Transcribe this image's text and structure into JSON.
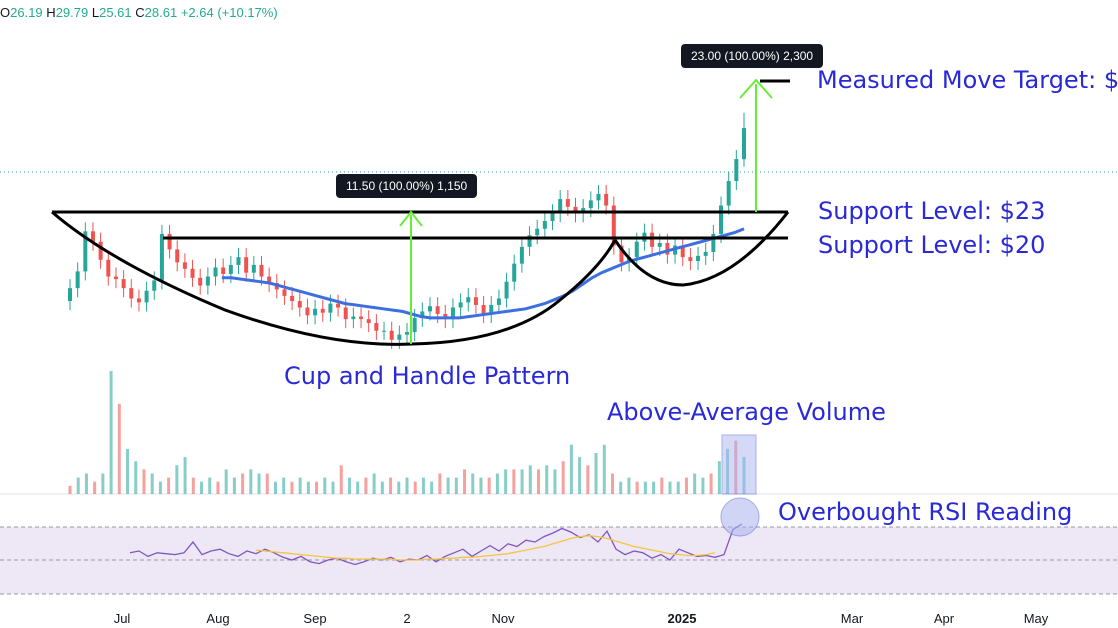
{
  "header": {
    "open_label": "O",
    "open": "26.19",
    "high_label": "H",
    "high": "29.79",
    "low_label": "L",
    "low": "25.61",
    "close_label": "C",
    "close": "28.61",
    "change": "+2.64 (+10.17%)"
  },
  "colors": {
    "up": "#26a69a",
    "down": "#ef5350",
    "ma": "#3d6fe0",
    "pattern": "#000000",
    "arrow": "#66ee33",
    "annotation": "#2929d6",
    "rsi": "#7e57c2",
    "rsi_ma": "#f5c542",
    "rsi_band": "#ede7f6",
    "volume_box": "#aab4f0"
  },
  "annotations": {
    "cup_handle": "Cup and Handle Pattern",
    "volume": "Above-Average Volume",
    "rsi": "Overbought RSI Reading",
    "support_23": "Support Level: $23",
    "support_20": "Support Level: $20",
    "target": "Measured Move Target: $"
  },
  "measure_tags": {
    "cup_depth": "11.50 (100.00%) 1,150",
    "target_move": "23.00 (100.00%) 2,300"
  },
  "chart_data": {
    "type": "candlestick",
    "x_axis_labels": [
      "Jul",
      "Aug",
      "Sep",
      "2",
      "Nov",
      "2025",
      "Mar",
      "Apr",
      "May"
    ],
    "support_levels": [
      23,
      20
    ],
    "cup_depth": 11.5,
    "measured_move": 23,
    "last_bar": {
      "open": 26.19,
      "high": 29.79,
      "low": 25.61,
      "close": 28.61,
      "change": 2.64,
      "change_pct": 10.17
    },
    "series": [
      {
        "name": "price",
        "close": [
          16.2,
          17.5,
          20.6,
          19.8,
          18.4,
          17.1,
          16.9,
          16.2,
          15.4,
          15.1,
          16.0,
          16.8,
          20.4,
          19.2,
          18.2,
          17.7,
          17.0,
          16.4,
          17.1,
          17.8,
          17.3,
          18.0,
          18.6,
          17.4,
          18.0,
          17.1,
          16.6,
          16.1,
          15.6,
          15.2,
          14.7,
          14.1,
          14.6,
          14.3,
          15.0,
          14.7,
          13.8,
          14.0,
          13.8,
          13.5,
          12.9,
          12.9,
          12.2,
          12.6,
          12.8,
          13.9,
          14.4,
          14.8,
          14.2,
          13.8,
          14.7,
          15.1,
          15.5,
          14.9,
          14.2,
          14.9,
          15.4,
          16.7,
          18.1,
          19.4,
          20.3,
          20.8,
          21.4,
          22.0,
          23.1,
          22.5,
          22.0,
          22.4,
          23.0,
          23.5,
          22.6,
          19.5,
          18.2,
          18.6,
          19.8,
          20.5,
          19.4,
          19.7,
          18.8,
          19.5,
          18.6,
          18.3,
          18.7,
          19.0,
          20.4,
          22.6,
          24.5,
          26.2,
          28.6
        ]
      },
      {
        "name": "moving average",
        "values": [
          null,
          null,
          null,
          null,
          null,
          null,
          null,
          null,
          null,
          null,
          null,
          null,
          null,
          null,
          null,
          null,
          17.0,
          17.0,
          16.9,
          16.8,
          16.7,
          16.6,
          16.4,
          16.2,
          16.0,
          15.8,
          15.6,
          15.4,
          15.2,
          15.0,
          14.9,
          14.8,
          14.7,
          14.6,
          14.5,
          14.4,
          14.2,
          14.0,
          13.9,
          13.9,
          13.9,
          13.9,
          14.0,
          14.1,
          14.2,
          14.3,
          14.4,
          14.5,
          14.6,
          14.8,
          15.0,
          15.3,
          15.6,
          16.0,
          16.5,
          17.0,
          17.4,
          17.7,
          18.0,
          18.3,
          18.5,
          18.7,
          18.9,
          19.1,
          19.3,
          19.5,
          19.7,
          19.9,
          20.1,
          20.3,
          20.5,
          20.8
        ]
      },
      {
        "name": "volume",
        "values": [
          2,
          4,
          5,
          3,
          5,
          30,
          22,
          11,
          8,
          6,
          5,
          3,
          4,
          7,
          9,
          4,
          3,
          4,
          3,
          6,
          4,
          5,
          6,
          5,
          5,
          3,
          4,
          3,
          4,
          3,
          3,
          4,
          3,
          7,
          4,
          3,
          4,
          5,
          3,
          4,
          3,
          4,
          3,
          4,
          3,
          5,
          4,
          4,
          6,
          5,
          4,
          4,
          5,
          6,
          6,
          6,
          7,
          6,
          7,
          6,
          8,
          12,
          9,
          7,
          10,
          12,
          5,
          3,
          4,
          3,
          3,
          3,
          4,
          3,
          3,
          4,
          5,
          4,
          5,
          8,
          11,
          13,
          9
        ]
      },
      {
        "name": "RSI",
        "values": [
          48,
          50,
          44,
          48,
          47,
          46,
          48,
          60,
          46,
          50,
          52,
          47,
          44,
          50,
          47,
          52,
          48,
          43,
          40,
          44,
          38,
          36,
          40,
          42,
          38,
          35,
          38,
          42,
          40,
          43,
          38,
          41,
          40,
          45,
          38,
          44,
          48,
          52,
          44,
          50,
          56,
          50,
          58,
          55,
          62,
          60,
          66,
          70,
          75,
          71,
          65,
          68,
          60,
          72,
          52,
          46,
          50,
          48,
          42,
          46,
          40,
          52,
          48,
          44,
          45,
          43,
          46,
          74,
          80
        ]
      },
      {
        "name": "RSI MA",
        "values": [
          null,
          null,
          null,
          null,
          null,
          null,
          null,
          null,
          51,
          50,
          49,
          48,
          47,
          46,
          45,
          44,
          43,
          42,
          42,
          41,
          41,
          41,
          41,
          41,
          40,
          40,
          40,
          41,
          41,
          42,
          42,
          43,
          43,
          44,
          45,
          46,
          47,
          49,
          51,
          53,
          55,
          58,
          61,
          64,
          66,
          67,
          66,
          64,
          61,
          58,
          55,
          53,
          51,
          49,
          47,
          46,
          45,
          45,
          46,
          48
        ]
      }
    ],
    "rsi_bands": [
      70,
      30
    ],
    "legend": "none"
  }
}
